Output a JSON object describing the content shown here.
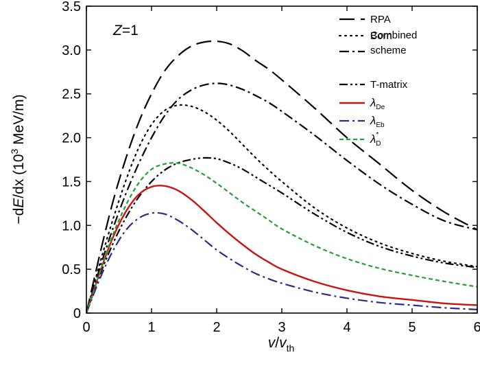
{
  "chart_data": {
    "type": "line",
    "xlim": [
      0,
      6
    ],
    "ylim": [
      0,
      3.5
    ],
    "xticks": [
      0,
      1,
      2,
      3,
      4,
      5,
      6
    ],
    "yticks": [
      0,
      0.5,
      1.0,
      1.5,
      2.0,
      2.5,
      3.0,
      3.5
    ],
    "ytick_labels": [
      "0",
      "0.5",
      "1.0",
      "1.5",
      "2.0",
      "2.5",
      "3.0",
      "3.5"
    ],
    "xtick_labels": [
      "0",
      "1",
      "2",
      "3",
      "4",
      "5",
      "6"
    ],
    "xlabel": {
      "v": "v",
      "slash": "/",
      "v2": "v",
      "sub": "th"
    },
    "ylabel": {
      "pre": "−d",
      "E": "E",
      "mid": "/dx (10",
      "sup": "3",
      "post": " MeV/m)"
    },
    "annotation": {
      "Z": "Z",
      "eq": "=1"
    },
    "grid": false,
    "legend_position": "top-right",
    "series": [
      {
        "name": "RPA",
        "color": "#000000",
        "dash": "long-dash",
        "x": [
          0,
          0.2,
          0.4,
          0.6,
          0.8,
          1.0,
          1.2,
          1.4,
          1.6,
          1.8,
          2.0,
          2.2,
          2.4,
          2.6,
          2.8,
          3.0,
          3.5,
          4.0,
          4.5,
          5.0,
          5.5,
          6.0
        ],
        "y": [
          0,
          0.65,
          1.25,
          1.75,
          2.17,
          2.5,
          2.76,
          2.93,
          3.04,
          3.09,
          3.1,
          3.07,
          2.99,
          2.88,
          2.78,
          2.66,
          2.34,
          2.0,
          1.7,
          1.4,
          1.15,
          0.95
        ]
      },
      {
        "name": "Born",
        "color": "#000000",
        "dash": "dotted",
        "x": [
          0,
          0.2,
          0.4,
          0.6,
          0.8,
          1.0,
          1.2,
          1.4,
          1.6,
          1.8,
          2.0,
          2.2,
          2.4,
          2.6,
          2.8,
          3.0,
          3.5,
          4.0,
          4.5,
          5.0,
          5.5,
          6.0
        ],
        "y": [
          0,
          0.55,
          1.05,
          1.5,
          1.88,
          2.15,
          2.31,
          2.37,
          2.36,
          2.3,
          2.2,
          2.07,
          1.92,
          1.77,
          1.63,
          1.5,
          1.2,
          0.97,
          0.8,
          0.68,
          0.59,
          0.53
        ]
      },
      {
        "name": "Combined scheme",
        "label_lines": [
          "Combined",
          "scheme"
        ],
        "color": "#000000",
        "dash": "dash-dot",
        "x": [
          0,
          0.2,
          0.4,
          0.6,
          0.8,
          1.0,
          1.2,
          1.4,
          1.6,
          1.8,
          2.0,
          2.2,
          2.4,
          2.6,
          2.8,
          3.0,
          3.5,
          4.0,
          4.5,
          5.0,
          5.5,
          6.0
        ],
        "y": [
          0,
          0.5,
          0.95,
          1.35,
          1.7,
          2.0,
          2.25,
          2.43,
          2.54,
          2.6,
          2.62,
          2.6,
          2.55,
          2.48,
          2.4,
          2.3,
          2.03,
          1.74,
          1.47,
          1.24,
          1.05,
          0.95
        ]
      },
      {
        "name": "T-matrix",
        "color": "#000000",
        "dash": "dash-dot-dot",
        "x": [
          0,
          0.2,
          0.4,
          0.6,
          0.8,
          1.0,
          1.2,
          1.4,
          1.6,
          1.8,
          2.0,
          2.2,
          2.4,
          2.6,
          2.8,
          3.0,
          3.5,
          4.0,
          4.5,
          5.0,
          5.5,
          6.0
        ],
        "y": [
          0,
          0.42,
          0.78,
          1.08,
          1.32,
          1.5,
          1.63,
          1.71,
          1.75,
          1.77,
          1.76,
          1.71,
          1.64,
          1.55,
          1.46,
          1.37,
          1.13,
          0.92,
          0.76,
          0.65,
          0.57,
          0.52
        ]
      },
      {
        "name": "λDe",
        "label": "λ",
        "label_sub": "De",
        "color": "#cc1111",
        "dash": "solid",
        "x": [
          0,
          0.2,
          0.4,
          0.6,
          0.8,
          1.0,
          1.2,
          1.4,
          1.6,
          1.8,
          2.0,
          2.2,
          2.4,
          2.6,
          2.8,
          3.0,
          3.5,
          4.0,
          4.5,
          5.0,
          5.5,
          6.0
        ],
        "y": [
          0,
          0.45,
          0.85,
          1.15,
          1.35,
          1.44,
          1.45,
          1.4,
          1.3,
          1.17,
          1.03,
          0.9,
          0.78,
          0.67,
          0.58,
          0.5,
          0.36,
          0.26,
          0.19,
          0.15,
          0.11,
          0.09
        ]
      },
      {
        "name": "λEb",
        "label": "λ",
        "label_sub": "Eb",
        "color": "#2a2a88",
        "dash": "dash-dot",
        "x": [
          0,
          0.2,
          0.4,
          0.6,
          0.8,
          1.0,
          1.2,
          1.4,
          1.6,
          1.8,
          2.0,
          2.2,
          2.4,
          2.6,
          2.8,
          3.0,
          3.5,
          4.0,
          4.5,
          5.0,
          5.5,
          6.0
        ],
        "y": [
          0,
          0.38,
          0.7,
          0.94,
          1.08,
          1.14,
          1.13,
          1.06,
          0.96,
          0.84,
          0.72,
          0.62,
          0.53,
          0.45,
          0.39,
          0.34,
          0.24,
          0.17,
          0.12,
          0.09,
          0.06,
          0.04
        ]
      },
      {
        "name": "λ*D",
        "label": "λ",
        "label_sup": "*",
        "label_sub": "D",
        "color": "#22a033",
        "dash": "short-dash",
        "x": [
          0,
          0.2,
          0.4,
          0.6,
          0.8,
          1.0,
          1.2,
          1.4,
          1.6,
          1.8,
          2.0,
          2.2,
          2.4,
          2.6,
          2.8,
          3.0,
          3.5,
          4.0,
          4.5,
          5.0,
          5.5,
          6.0
        ],
        "y": [
          0,
          0.45,
          0.88,
          1.22,
          1.48,
          1.64,
          1.7,
          1.71,
          1.66,
          1.58,
          1.48,
          1.37,
          1.26,
          1.16,
          1.06,
          0.96,
          0.77,
          0.62,
          0.51,
          0.43,
          0.36,
          0.3
        ]
      }
    ]
  }
}
